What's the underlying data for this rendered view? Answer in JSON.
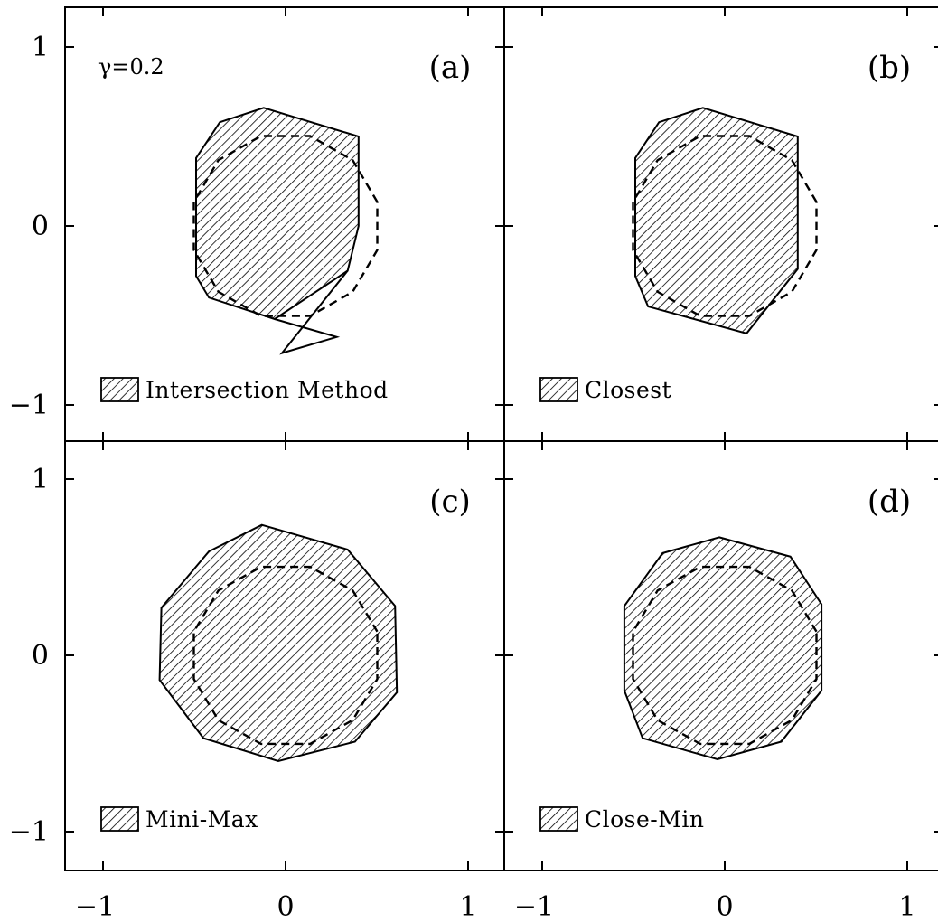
{
  "chart_data": {
    "type": "area",
    "grid": false,
    "shared_axes": {
      "xlim": [
        -1.2,
        1.2
      ],
      "ylim": [
        -1.2,
        1.2
      ],
      "x_ticks": [
        -1,
        0,
        1
      ],
      "y_ticks": [
        -1,
        0,
        1
      ],
      "x_tick_labels": [
        "−1",
        "0",
        "1"
      ],
      "y_tick_labels": [
        "−1",
        "0",
        "1"
      ]
    },
    "annotation": "γ=0.2",
    "reference_circle": {
      "style": "dashed",
      "center": [
        0,
        0
      ],
      "radius": 0.52,
      "segments": 12
    },
    "panels": [
      {
        "label": "(a)",
        "legend": "Intersection Method",
        "region": [
          [
            -0.49,
            0.38
          ],
          [
            -0.36,
            0.58
          ],
          [
            -0.12,
            0.66
          ],
          [
            0.4,
            0.5
          ],
          [
            0.4,
            0.0
          ],
          [
            0.34,
            -0.25
          ],
          [
            -0.06,
            -0.52
          ],
          [
            -0.42,
            -0.4
          ],
          [
            -0.49,
            -0.28
          ]
        ],
        "spur": [
          [
            -0.06,
            -0.52
          ],
          [
            0.28,
            -0.62
          ],
          [
            -0.02,
            -0.71
          ],
          [
            0.34,
            -0.25
          ]
        ]
      },
      {
        "label": "(b)",
        "legend": "Closest",
        "region": [
          [
            -0.49,
            0.38
          ],
          [
            -0.36,
            0.58
          ],
          [
            -0.12,
            0.66
          ],
          [
            0.4,
            0.5
          ],
          [
            0.4,
            -0.24
          ],
          [
            0.12,
            -0.6
          ],
          [
            -0.42,
            -0.45
          ],
          [
            -0.49,
            -0.28
          ]
        ]
      },
      {
        "label": "(c)",
        "legend": "Mini-Max",
        "region": [
          [
            -0.13,
            0.74
          ],
          [
            0.34,
            0.6
          ],
          [
            0.6,
            0.28
          ],
          [
            0.61,
            -0.21
          ],
          [
            0.38,
            -0.49
          ],
          [
            -0.04,
            -0.6
          ],
          [
            -0.45,
            -0.47
          ],
          [
            -0.69,
            -0.14
          ],
          [
            -0.68,
            0.27
          ],
          [
            -0.42,
            0.59
          ]
        ]
      },
      {
        "label": "(d)",
        "legend": "Close-Min",
        "region": [
          [
            -0.03,
            0.67
          ],
          [
            0.36,
            0.56
          ],
          [
            0.53,
            0.29
          ],
          [
            0.53,
            -0.2
          ],
          [
            0.31,
            -0.49
          ],
          [
            -0.04,
            -0.59
          ],
          [
            -0.45,
            -0.47
          ],
          [
            -0.55,
            -0.2
          ],
          [
            -0.55,
            0.28
          ],
          [
            -0.34,
            0.58
          ]
        ]
      }
    ]
  }
}
